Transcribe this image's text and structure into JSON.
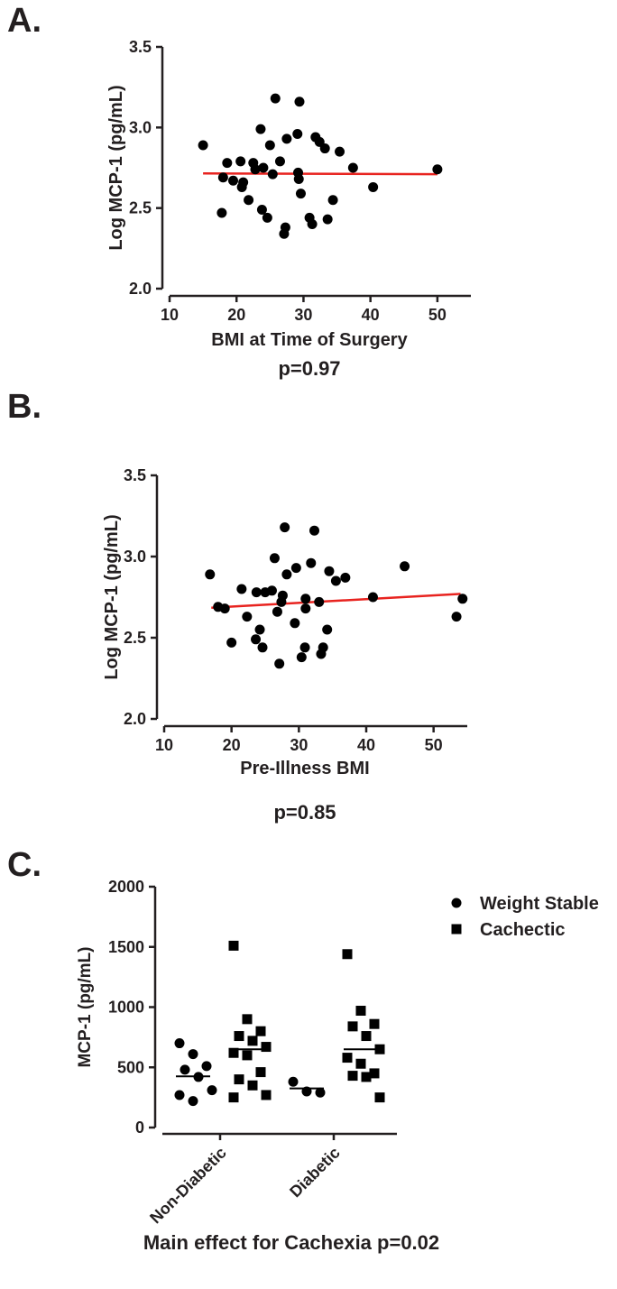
{
  "panel_labels": [
    "A.",
    "B.",
    "C."
  ],
  "chart_data": [
    {
      "type": "scatter",
      "xlabel": "BMI at Time of Surgery",
      "ylabel": "Log MCP-1 (pg/mL)",
      "xlim": [
        10,
        55
      ],
      "ylim": [
        2.0,
        3.5
      ],
      "xticks": [
        "10",
        "20",
        "30",
        "40",
        "50"
      ],
      "yticks": [
        "2.0",
        "2.5",
        "3.0",
        "3.5"
      ],
      "annotation": "p=0.97",
      "regression": {
        "x": [
          15,
          50
        ],
        "y": [
          2.715,
          2.71
        ],
        "color": "#e8231f"
      },
      "points": [
        [
          15.0,
          2.89
        ],
        [
          17.8,
          2.47
        ],
        [
          18.0,
          2.69
        ],
        [
          18.6,
          2.78
        ],
        [
          19.5,
          2.67
        ],
        [
          20.6,
          2.79
        ],
        [
          20.8,
          2.63
        ],
        [
          21.0,
          2.66
        ],
        [
          21.8,
          2.55
        ],
        [
          22.5,
          2.78
        ],
        [
          22.8,
          2.74
        ],
        [
          23.6,
          2.99
        ],
        [
          23.8,
          2.49
        ],
        [
          24.0,
          2.75
        ],
        [
          24.6,
          2.44
        ],
        [
          25.0,
          2.89
        ],
        [
          25.4,
          2.71
        ],
        [
          25.8,
          3.18
        ],
        [
          26.5,
          2.79
        ],
        [
          27.1,
          2.34
        ],
        [
          27.3,
          2.38
        ],
        [
          27.5,
          2.93
        ],
        [
          29.1,
          2.96
        ],
        [
          29.2,
          2.72
        ],
        [
          29.3,
          2.68
        ],
        [
          29.4,
          3.16
        ],
        [
          29.6,
          2.59
        ],
        [
          30.9,
          2.44
        ],
        [
          31.3,
          2.4
        ],
        [
          31.8,
          2.94
        ],
        [
          32.4,
          2.91
        ],
        [
          33.2,
          2.87
        ],
        [
          33.6,
          2.43
        ],
        [
          34.4,
          2.55
        ],
        [
          35.4,
          2.85
        ],
        [
          37.4,
          2.75
        ],
        [
          40.4,
          2.63
        ],
        [
          50.0,
          2.74
        ]
      ]
    },
    {
      "type": "scatter",
      "xlabel": "Pre-Illness BMI",
      "ylabel": "Log MCP-1 (pg/mL)",
      "xlim": [
        10,
        55
      ],
      "ylim": [
        2.0,
        3.5
      ],
      "xticks": [
        "10",
        "20",
        "30",
        "40",
        "50"
      ],
      "yticks": [
        "2.0",
        "2.5",
        "3.0",
        "3.5"
      ],
      "annotation": "p=0.85",
      "regression": {
        "x": [
          17,
          54
        ],
        "y": [
          2.685,
          2.77
        ],
        "color": "#e8231f"
      },
      "points": [
        [
          16.8,
          2.89
        ],
        [
          18.0,
          2.69
        ],
        [
          19.0,
          2.68
        ],
        [
          20.0,
          2.47
        ],
        [
          21.5,
          2.8
        ],
        [
          22.3,
          2.63
        ],
        [
          23.6,
          2.49
        ],
        [
          23.7,
          2.78
        ],
        [
          24.2,
          2.55
        ],
        [
          24.6,
          2.44
        ],
        [
          25.0,
          2.78
        ],
        [
          26.0,
          2.79
        ],
        [
          26.4,
          2.99
        ],
        [
          26.8,
          2.66
        ],
        [
          27.1,
          2.34
        ],
        [
          27.4,
          2.72
        ],
        [
          27.6,
          2.76
        ],
        [
          27.9,
          3.18
        ],
        [
          28.2,
          2.89
        ],
        [
          29.4,
          2.59
        ],
        [
          29.6,
          2.93
        ],
        [
          30.4,
          2.38
        ],
        [
          30.9,
          2.44
        ],
        [
          31.0,
          2.74
        ],
        [
          31.0,
          2.68
        ],
        [
          31.8,
          2.96
        ],
        [
          32.3,
          3.16
        ],
        [
          33.0,
          2.72
        ],
        [
          33.3,
          2.4
        ],
        [
          33.6,
          2.44
        ],
        [
          34.2,
          2.55
        ],
        [
          34.5,
          2.91
        ],
        [
          35.5,
          2.85
        ],
        [
          36.9,
          2.87
        ],
        [
          41.0,
          2.75
        ],
        [
          45.7,
          2.94
        ],
        [
          53.4,
          2.63
        ],
        [
          54.3,
          2.74
        ]
      ]
    },
    {
      "type": "scatter",
      "chart_subtype": "dot-plot with group means",
      "ylabel": "MCP-1 (pg/mL)",
      "ylim": [
        0,
        2000
      ],
      "yticks": [
        "0",
        "500",
        "1000",
        "1500",
        "2000"
      ],
      "categories": [
        "Non-Diabetic",
        "Diabetic"
      ],
      "legend_position": "top-right",
      "annotation": "Main effect for Cachexia p=0.02",
      "series": [
        {
          "name": "Weight Stable",
          "marker": "circle",
          "values": [
            [
              700,
              610,
              510,
              480,
              420,
              310,
              270,
              220
            ],
            [
              380,
              300,
              290
            ]
          ],
          "means": [
            425,
            325
          ]
        },
        {
          "name": "Cachectic",
          "marker": "square",
          "values": [
            [
              1510,
              900,
              800,
              760,
              720,
              670,
              620,
              600,
              460,
              400,
              350,
              270,
              250
            ],
            [
              1440,
              970,
              860,
              840,
              760,
              650,
              580,
              530,
              450,
              430,
              420,
              250
            ]
          ],
          "means": [
            650,
            650
          ]
        }
      ]
    }
  ]
}
